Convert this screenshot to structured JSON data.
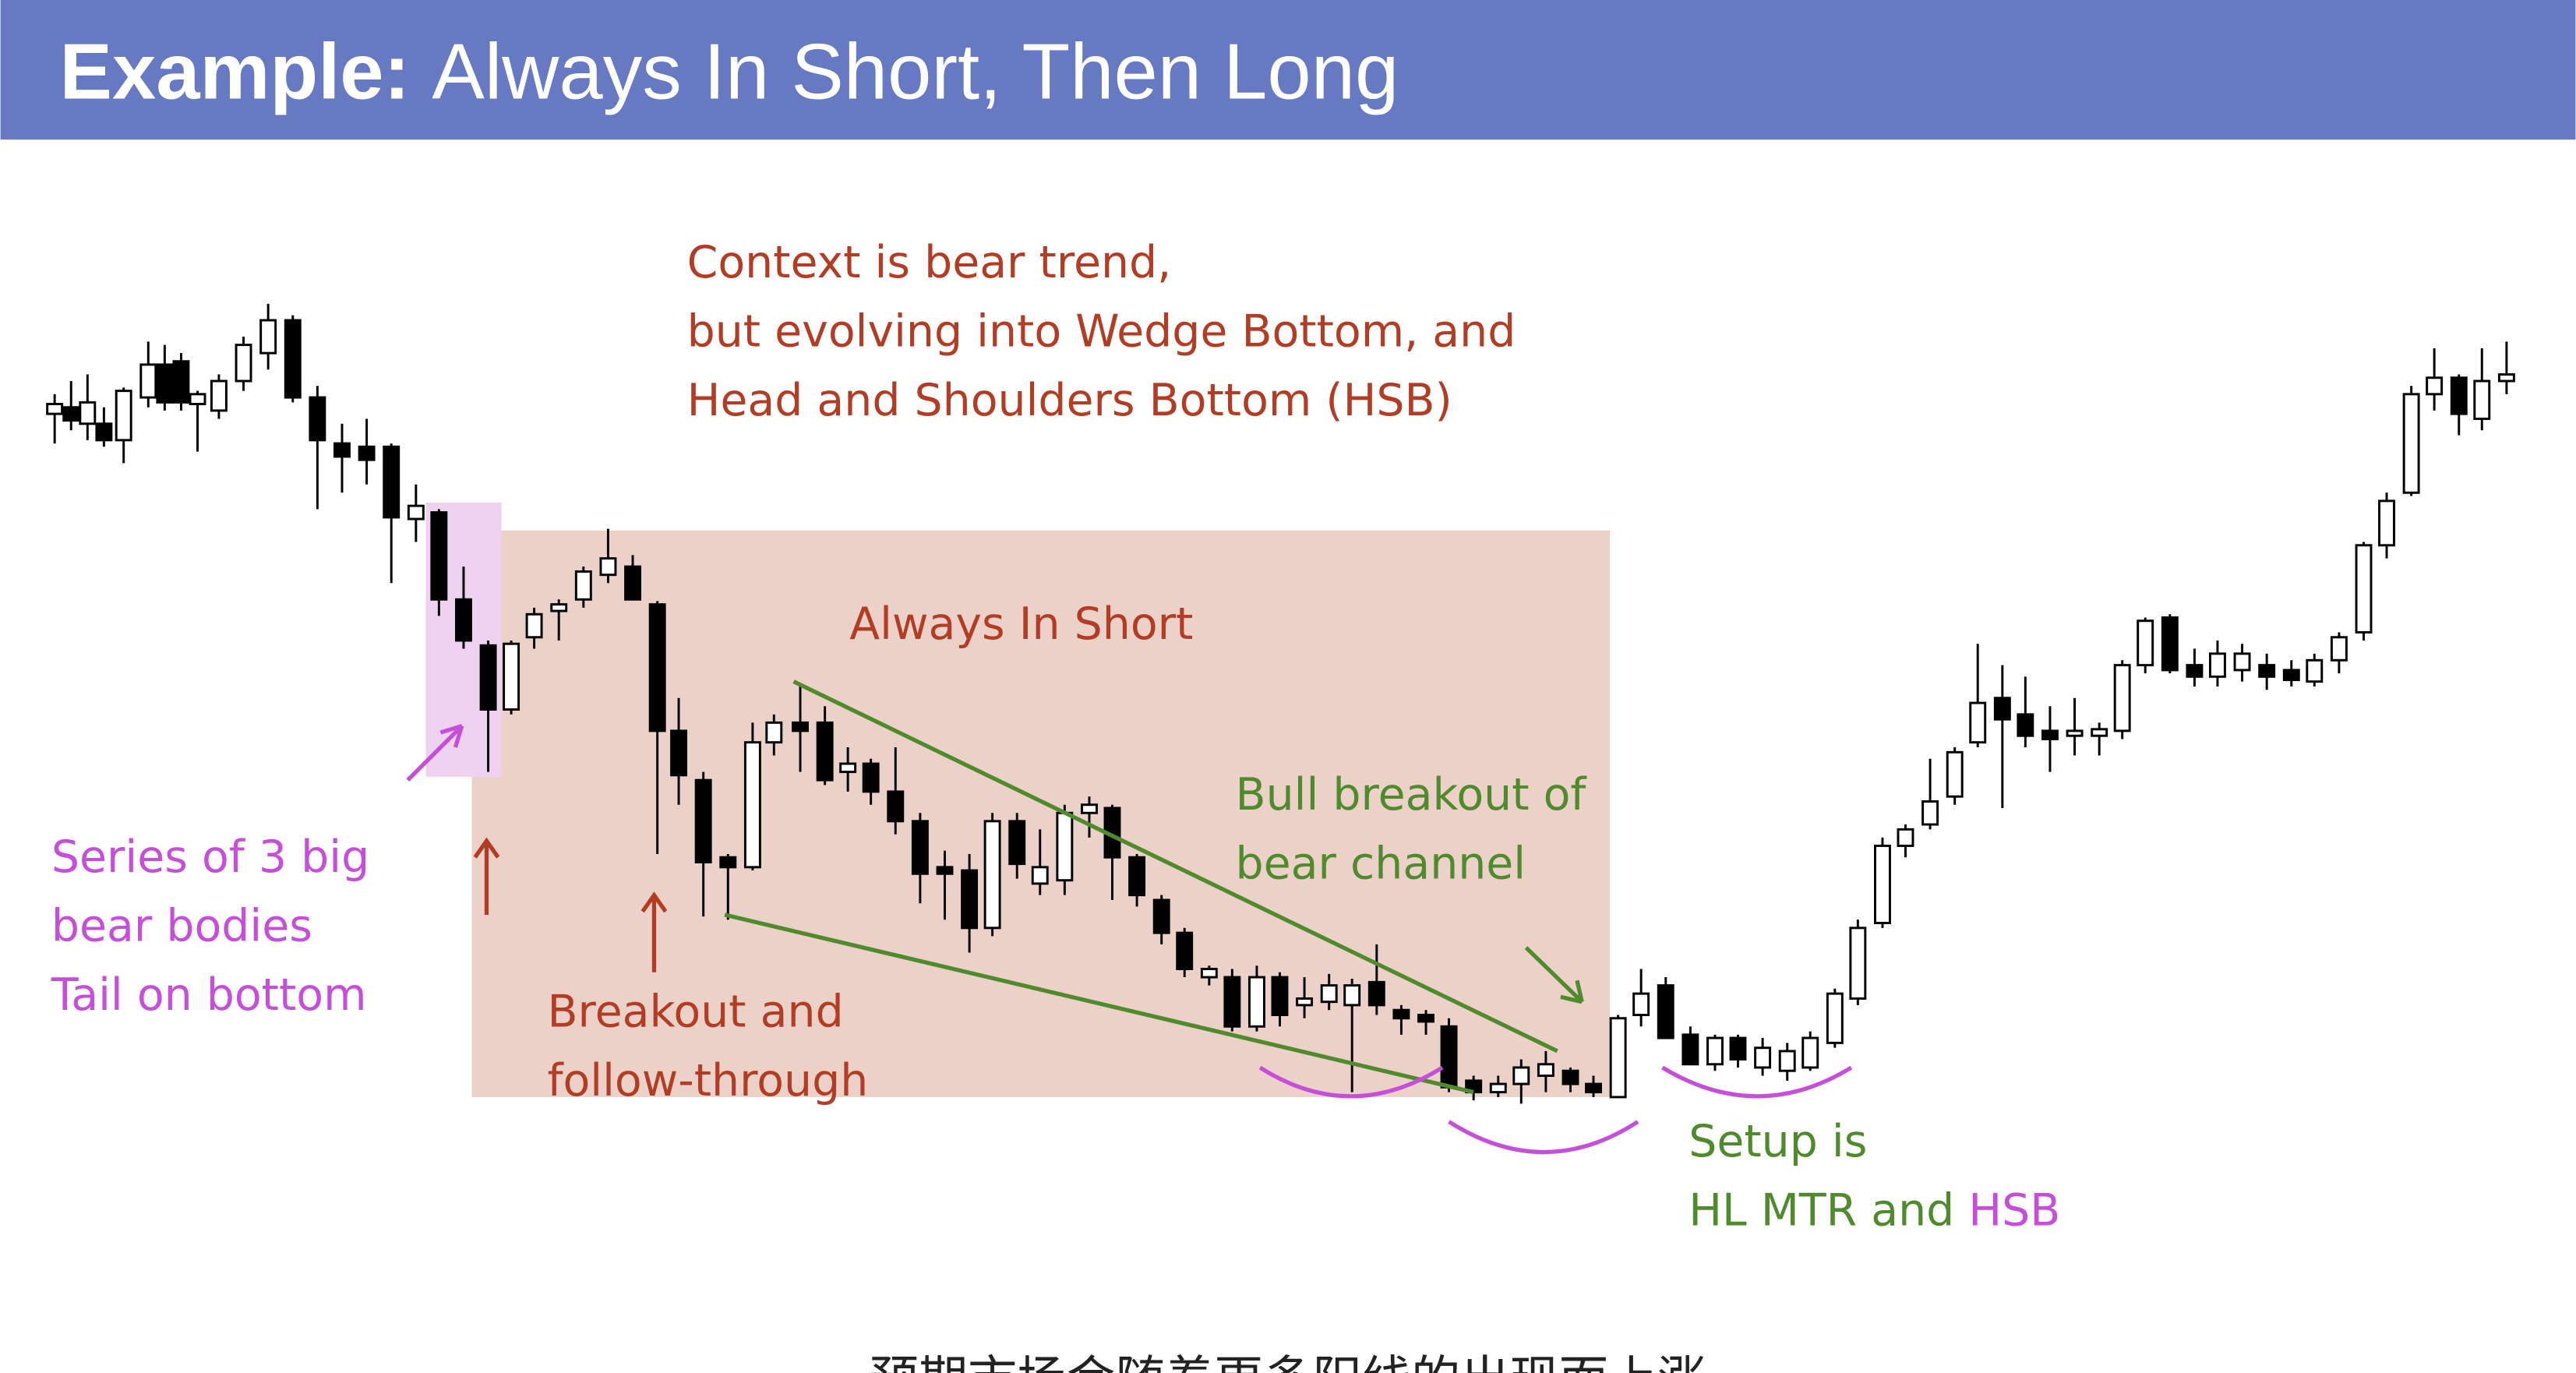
{
  "header": {
    "title_bold": "Example:",
    "title_rest": "Always In Short, Then Long"
  },
  "annotations": {
    "context": [
      "Context is bear trend,",
      "but evolving into Wedge Bottom, and",
      "Head and Shoulders Bottom (HSB)"
    ],
    "always_in_short": "Always In Short",
    "bull_breakout": [
      "Bull breakout of",
      "bear channel"
    ],
    "series": [
      "Series of 3 big",
      "bear bodies",
      "Tail on bottom"
    ],
    "breakout": [
      "Breakout and",
      "follow-through"
    ],
    "setup": {
      "line1": "Setup is",
      "line2_green": "HL MTR and",
      "line2_purple": "HSB"
    }
  },
  "caption": "预期市场会随着更多阳线的出现而上涨"
}
